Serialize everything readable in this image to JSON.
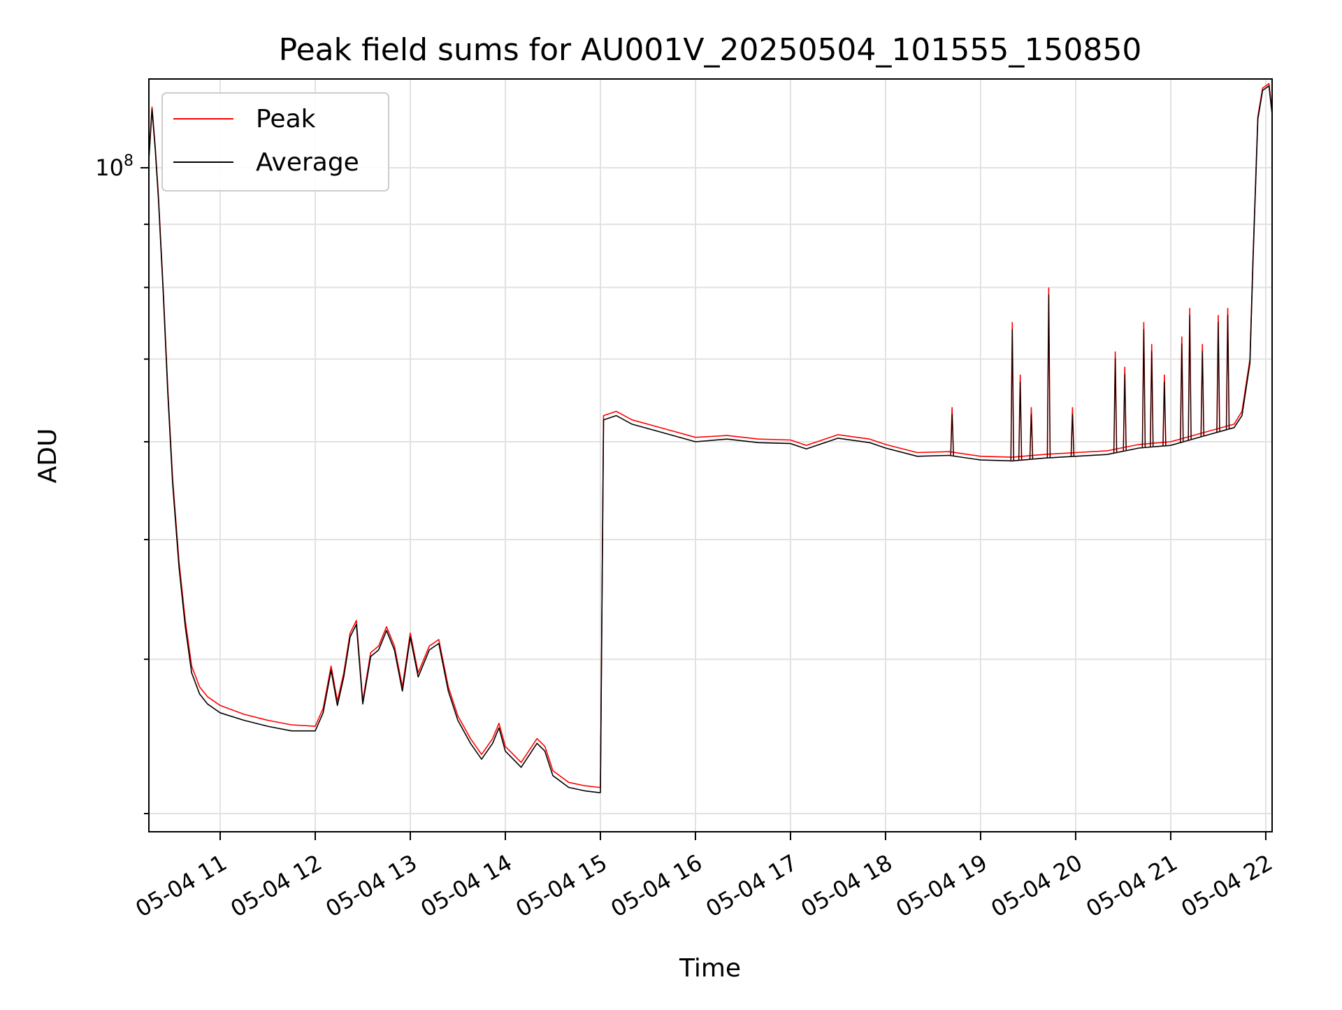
{
  "chart_data": {
    "type": "line",
    "title": "Peak field sums for AU001V_20250504_101555_150850",
    "xlabel": "Time",
    "ylabel": "ADU",
    "y_scale": "log",
    "ylim": [
      29000000,
      118000000
    ],
    "xlim": [
      "2025-05-04 10:15",
      "2025-05-04 22:04"
    ],
    "grid": true,
    "legend_position": "top-left",
    "x_ticks": [
      {
        "value": "2025-05-04 11:00",
        "label": "05-04 11"
      },
      {
        "value": "2025-05-04 12:00",
        "label": "05-04 12"
      },
      {
        "value": "2025-05-04 13:00",
        "label": "05-04 13"
      },
      {
        "value": "2025-05-04 14:00",
        "label": "05-04 14"
      },
      {
        "value": "2025-05-04 15:00",
        "label": "05-04 15"
      },
      {
        "value": "2025-05-04 16:00",
        "label": "05-04 16"
      },
      {
        "value": "2025-05-04 17:00",
        "label": "05-04 17"
      },
      {
        "value": "2025-05-04 18:00",
        "label": "05-04 18"
      },
      {
        "value": "2025-05-04 19:00",
        "label": "05-04 19"
      },
      {
        "value": "2025-05-04 20:00",
        "label": "05-04 20"
      },
      {
        "value": "2025-05-04 21:00",
        "label": "05-04 21"
      },
      {
        "value": "2025-05-04 22:00",
        "label": "05-04 22"
      }
    ],
    "y_ticks": [
      {
        "value": 100000000,
        "label_base": "10",
        "label_exp": "8"
      }
    ],
    "series": [
      {
        "name": "Peak",
        "color": "#ff0000",
        "x": [
          "2025-05-04 10:15",
          "2025-05-04 10:17",
          "2025-05-04 10:19",
          "2025-05-04 10:21",
          "2025-05-04 10:24",
          "2025-05-04 10:27",
          "2025-05-04 10:30",
          "2025-05-04 10:34",
          "2025-05-04 10:38",
          "2025-05-04 10:42",
          "2025-05-04 10:47",
          "2025-05-04 10:52",
          "2025-05-04 11:00",
          "2025-05-04 11:15",
          "2025-05-04 11:30",
          "2025-05-04 11:45",
          "2025-05-04 12:00",
          "2025-05-04 12:05",
          "2025-05-04 12:10",
          "2025-05-04 12:14",
          "2025-05-04 12:18",
          "2025-05-04 12:22",
          "2025-05-04 12:26",
          "2025-05-04 12:30",
          "2025-05-04 12:35",
          "2025-05-04 12:40",
          "2025-05-04 12:45",
          "2025-05-04 12:50",
          "2025-05-04 12:55",
          "2025-05-04 13:00",
          "2025-05-04 13:05",
          "2025-05-04 13:12",
          "2025-05-04 13:18",
          "2025-05-04 13:24",
          "2025-05-04 13:30",
          "2025-05-04 13:38",
          "2025-05-04 13:45",
          "2025-05-04 13:52",
          "2025-05-04 13:56",
          "2025-05-04 14:00",
          "2025-05-04 14:05",
          "2025-05-04 14:10",
          "2025-05-04 14:20",
          "2025-05-04 14:25",
          "2025-05-04 14:30",
          "2025-05-04 14:40",
          "2025-05-04 14:50",
          "2025-05-04 14:59",
          "2025-05-04 15:00",
          "2025-05-04 15:02",
          "2025-05-04 15:10",
          "2025-05-04 15:20",
          "2025-05-04 15:40",
          "2025-05-04 16:00",
          "2025-05-04 16:20",
          "2025-05-04 16:40",
          "2025-05-04 17:00",
          "2025-05-04 17:10",
          "2025-05-04 17:30",
          "2025-05-04 17:50",
          "2025-05-04 18:00",
          "2025-05-04 18:20",
          "2025-05-04 18:40",
          "2025-05-04 19:00",
          "2025-05-04 19:20",
          "2025-05-04 19:40",
          "2025-05-04 20:00",
          "2025-05-04 20:20",
          "2025-05-04 20:40",
          "2025-05-04 21:00",
          "2025-05-04 21:20",
          "2025-05-04 21:40",
          "2025-05-04 21:45",
          "2025-05-04 21:50",
          "2025-05-04 21:52",
          "2025-05-04 21:55",
          "2025-05-04 21:58",
          "2025-05-04 22:02",
          "2025-05-04 22:04"
        ],
        "y": [
          102000000,
          112000000,
          104000000,
          95000000,
          80000000,
          66000000,
          56000000,
          48000000,
          43000000,
          39500000,
          38000000,
          37300000,
          36700000,
          36100000,
          35700000,
          35400000,
          35300000,
          36500000,
          39500000,
          37000000,
          39000000,
          42000000,
          43000000,
          37000000,
          40500000,
          41000000,
          42500000,
          41000000,
          38000000,
          42000000,
          39000000,
          41000000,
          41500000,
          38000000,
          36000000,
          34500000,
          33500000,
          34500000,
          35500000,
          34000000,
          33500000,
          33000000,
          34500000,
          34000000,
          32500000,
          31800000,
          31600000,
          31500000,
          31500000,
          63000000,
          63500000,
          62500000,
          61500000,
          60500000,
          60700000,
          60300000,
          60200000,
          59600000,
          60800000,
          60300000,
          59700000,
          58800000,
          58900000,
          58400000,
          58300000,
          58600000,
          58800000,
          59000000,
          59700000,
          60000000,
          61000000,
          62000000,
          63500000,
          70000000,
          85000000,
          110000000,
          116000000,
          117000000,
          111000000
        ]
      },
      {
        "name": "Average",
        "color": "#000000",
        "x": [
          "2025-05-04 10:15",
          "2025-05-04 10:17",
          "2025-05-04 10:19",
          "2025-05-04 10:21",
          "2025-05-04 10:24",
          "2025-05-04 10:27",
          "2025-05-04 10:30",
          "2025-05-04 10:34",
          "2025-05-04 10:38",
          "2025-05-04 10:42",
          "2025-05-04 10:47",
          "2025-05-04 10:52",
          "2025-05-04 11:00",
          "2025-05-04 11:15",
          "2025-05-04 11:30",
          "2025-05-04 11:45",
          "2025-05-04 12:00",
          "2025-05-04 12:05",
          "2025-05-04 12:10",
          "2025-05-04 12:14",
          "2025-05-04 12:18",
          "2025-05-04 12:22",
          "2025-05-04 12:26",
          "2025-05-04 12:30",
          "2025-05-04 12:35",
          "2025-05-04 12:40",
          "2025-05-04 12:45",
          "2025-05-04 12:50",
          "2025-05-04 12:55",
          "2025-05-04 13:00",
          "2025-05-04 13:05",
          "2025-05-04 13:12",
          "2025-05-04 13:18",
          "2025-05-04 13:24",
          "2025-05-04 13:30",
          "2025-05-04 13:38",
          "2025-05-04 13:45",
          "2025-05-04 13:52",
          "2025-05-04 13:56",
          "2025-05-04 14:00",
          "2025-05-04 14:05",
          "2025-05-04 14:10",
          "2025-05-04 14:20",
          "2025-05-04 14:25",
          "2025-05-04 14:30",
          "2025-05-04 14:40",
          "2025-05-04 14:50",
          "2025-05-04 14:59",
          "2025-05-04 15:00",
          "2025-05-04 15:02",
          "2025-05-04 15:10",
          "2025-05-04 15:20",
          "2025-05-04 15:40",
          "2025-05-04 16:00",
          "2025-05-04 16:20",
          "2025-05-04 16:40",
          "2025-05-04 17:00",
          "2025-05-04 17:10",
          "2025-05-04 17:30",
          "2025-05-04 17:50",
          "2025-05-04 18:00",
          "2025-05-04 18:20",
          "2025-05-04 18:40",
          "2025-05-04 19:00",
          "2025-05-04 19:20",
          "2025-05-04 19:40",
          "2025-05-04 20:00",
          "2025-05-04 20:20",
          "2025-05-04 20:40",
          "2025-05-04 21:00",
          "2025-05-04 21:20",
          "2025-05-04 21:40",
          "2025-05-04 21:45",
          "2025-05-04 21:50",
          "2025-05-04 21:52",
          "2025-05-04 21:55",
          "2025-05-04 21:58",
          "2025-05-04 22:02",
          "2025-05-04 22:04"
        ],
        "y": [
          101500000,
          111500000,
          103500000,
          94500000,
          79500000,
          65500000,
          55500000,
          47500000,
          42500000,
          39000000,
          37500000,
          36800000,
          36200000,
          35700000,
          35300000,
          35000000,
          35000000,
          36200000,
          39200000,
          36700000,
          38700000,
          41700000,
          42700000,
          36800000,
          40200000,
          40700000,
          42200000,
          40700000,
          37700000,
          41700000,
          38700000,
          40700000,
          41200000,
          37700000,
          35700000,
          34200000,
          33200000,
          34200000,
          35200000,
          33700000,
          33200000,
          32700000,
          34200000,
          33700000,
          32200000,
          31500000,
          31300000,
          31200000,
          31200000,
          62500000,
          63000000,
          62000000,
          61000000,
          60000000,
          60300000,
          59900000,
          59800000,
          59200000,
          60400000,
          59900000,
          59300000,
          58400000,
          58500000,
          58000000,
          57900000,
          58200000,
          58400000,
          58600000,
          59300000,
          59600000,
          60600000,
          61600000,
          63000000,
          69500000,
          84500000,
          109500000,
          115500000,
          116500000,
          110500000
        ]
      }
    ],
    "spikes": [
      {
        "series": "Peak",
        "x": "2025-05-04 18:42",
        "y": 64000000
      },
      {
        "series": "Peak",
        "x": "2025-05-04 19:20",
        "y": 75000000
      },
      {
        "series": "Peak",
        "x": "2025-05-04 19:25",
        "y": 68000000
      },
      {
        "series": "Peak",
        "x": "2025-05-04 19:32",
        "y": 64000000
      },
      {
        "series": "Peak",
        "x": "2025-05-04 19:43",
        "y": 80000000
      },
      {
        "series": "Peak",
        "x": "2025-05-04 19:58",
        "y": 64000000
      },
      {
        "series": "Peak",
        "x": "2025-05-04 20:25",
        "y": 71000000
      },
      {
        "series": "Peak",
        "x": "2025-05-04 20:31",
        "y": 69000000
      },
      {
        "series": "Peak",
        "x": "2025-05-04 20:43",
        "y": 75000000
      },
      {
        "series": "Peak",
        "x": "2025-05-04 20:48",
        "y": 72000000
      },
      {
        "series": "Peak",
        "x": "2025-05-04 20:56",
        "y": 68000000
      },
      {
        "series": "Peak",
        "x": "2025-05-04 21:07",
        "y": 73000000
      },
      {
        "series": "Peak",
        "x": "2025-05-04 21:12",
        "y": 77000000
      },
      {
        "series": "Peak",
        "x": "2025-05-04 21:20",
        "y": 72000000
      },
      {
        "series": "Peak",
        "x": "2025-05-04 21:30",
        "y": 76000000
      },
      {
        "series": "Peak",
        "x": "2025-05-04 21:36",
        "y": 77000000
      }
    ]
  }
}
